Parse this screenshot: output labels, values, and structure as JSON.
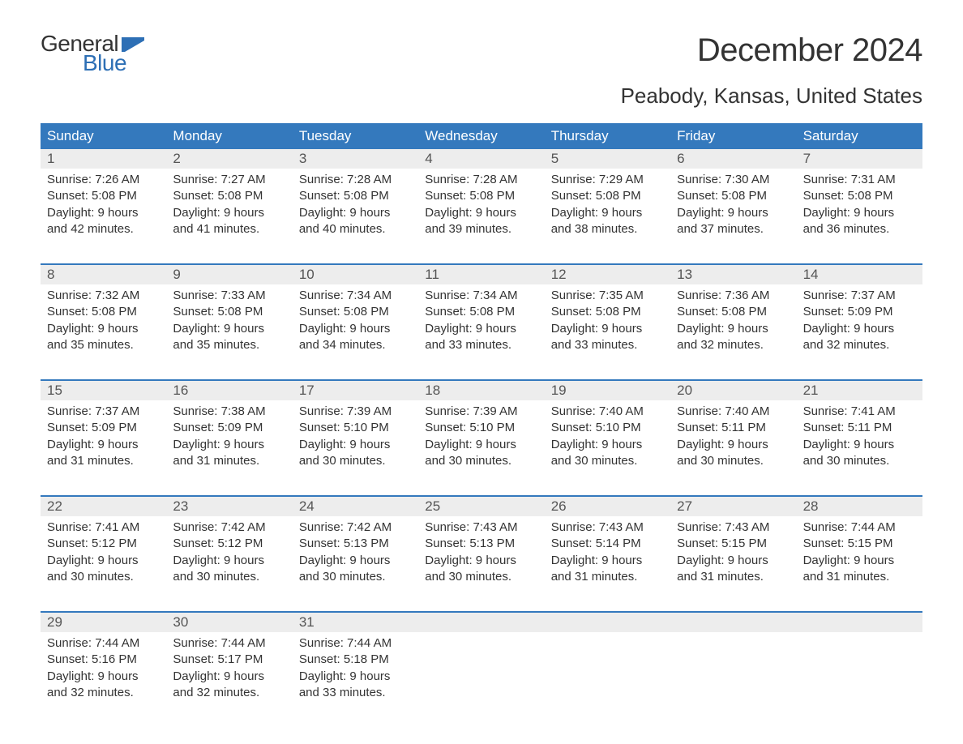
{
  "logo": {
    "text_general": "General",
    "text_blue": "Blue",
    "flag_color": "#2d6fb5"
  },
  "title": "December 2024",
  "location": "Peabody, Kansas, United States",
  "colors": {
    "header_bg": "#3479bd",
    "header_text": "#ffffff",
    "date_row_bg": "#ededed",
    "week_border": "#3479bd",
    "body_text": "#333333",
    "logo_blue": "#2d6fb5"
  },
  "day_names": [
    "Sunday",
    "Monday",
    "Tuesday",
    "Wednesday",
    "Thursday",
    "Friday",
    "Saturday"
  ],
  "weeks": [
    {
      "dates": [
        "1",
        "2",
        "3",
        "4",
        "5",
        "6",
        "7"
      ],
      "cells": [
        {
          "sunrise": "Sunrise: 7:26 AM",
          "sunset": "Sunset: 5:08 PM",
          "daylight1": "Daylight: 9 hours",
          "daylight2": "and 42 minutes."
        },
        {
          "sunrise": "Sunrise: 7:27 AM",
          "sunset": "Sunset: 5:08 PM",
          "daylight1": "Daylight: 9 hours",
          "daylight2": "and 41 minutes."
        },
        {
          "sunrise": "Sunrise: 7:28 AM",
          "sunset": "Sunset: 5:08 PM",
          "daylight1": "Daylight: 9 hours",
          "daylight2": "and 40 minutes."
        },
        {
          "sunrise": "Sunrise: 7:28 AM",
          "sunset": "Sunset: 5:08 PM",
          "daylight1": "Daylight: 9 hours",
          "daylight2": "and 39 minutes."
        },
        {
          "sunrise": "Sunrise: 7:29 AM",
          "sunset": "Sunset: 5:08 PM",
          "daylight1": "Daylight: 9 hours",
          "daylight2": "and 38 minutes."
        },
        {
          "sunrise": "Sunrise: 7:30 AM",
          "sunset": "Sunset: 5:08 PM",
          "daylight1": "Daylight: 9 hours",
          "daylight2": "and 37 minutes."
        },
        {
          "sunrise": "Sunrise: 7:31 AM",
          "sunset": "Sunset: 5:08 PM",
          "daylight1": "Daylight: 9 hours",
          "daylight2": "and 36 minutes."
        }
      ]
    },
    {
      "dates": [
        "8",
        "9",
        "10",
        "11",
        "12",
        "13",
        "14"
      ],
      "cells": [
        {
          "sunrise": "Sunrise: 7:32 AM",
          "sunset": "Sunset: 5:08 PM",
          "daylight1": "Daylight: 9 hours",
          "daylight2": "and 35 minutes."
        },
        {
          "sunrise": "Sunrise: 7:33 AM",
          "sunset": "Sunset: 5:08 PM",
          "daylight1": "Daylight: 9 hours",
          "daylight2": "and 35 minutes."
        },
        {
          "sunrise": "Sunrise: 7:34 AM",
          "sunset": "Sunset: 5:08 PM",
          "daylight1": "Daylight: 9 hours",
          "daylight2": "and 34 minutes."
        },
        {
          "sunrise": "Sunrise: 7:34 AM",
          "sunset": "Sunset: 5:08 PM",
          "daylight1": "Daylight: 9 hours",
          "daylight2": "and 33 minutes."
        },
        {
          "sunrise": "Sunrise: 7:35 AM",
          "sunset": "Sunset: 5:08 PM",
          "daylight1": "Daylight: 9 hours",
          "daylight2": "and 33 minutes."
        },
        {
          "sunrise": "Sunrise: 7:36 AM",
          "sunset": "Sunset: 5:08 PM",
          "daylight1": "Daylight: 9 hours",
          "daylight2": "and 32 minutes."
        },
        {
          "sunrise": "Sunrise: 7:37 AM",
          "sunset": "Sunset: 5:09 PM",
          "daylight1": "Daylight: 9 hours",
          "daylight2": "and 32 minutes."
        }
      ]
    },
    {
      "dates": [
        "15",
        "16",
        "17",
        "18",
        "19",
        "20",
        "21"
      ],
      "cells": [
        {
          "sunrise": "Sunrise: 7:37 AM",
          "sunset": "Sunset: 5:09 PM",
          "daylight1": "Daylight: 9 hours",
          "daylight2": "and 31 minutes."
        },
        {
          "sunrise": "Sunrise: 7:38 AM",
          "sunset": "Sunset: 5:09 PM",
          "daylight1": "Daylight: 9 hours",
          "daylight2": "and 31 minutes."
        },
        {
          "sunrise": "Sunrise: 7:39 AM",
          "sunset": "Sunset: 5:10 PM",
          "daylight1": "Daylight: 9 hours",
          "daylight2": "and 30 minutes."
        },
        {
          "sunrise": "Sunrise: 7:39 AM",
          "sunset": "Sunset: 5:10 PM",
          "daylight1": "Daylight: 9 hours",
          "daylight2": "and 30 minutes."
        },
        {
          "sunrise": "Sunrise: 7:40 AM",
          "sunset": "Sunset: 5:10 PM",
          "daylight1": "Daylight: 9 hours",
          "daylight2": "and 30 minutes."
        },
        {
          "sunrise": "Sunrise: 7:40 AM",
          "sunset": "Sunset: 5:11 PM",
          "daylight1": "Daylight: 9 hours",
          "daylight2": "and 30 minutes."
        },
        {
          "sunrise": "Sunrise: 7:41 AM",
          "sunset": "Sunset: 5:11 PM",
          "daylight1": "Daylight: 9 hours",
          "daylight2": "and 30 minutes."
        }
      ]
    },
    {
      "dates": [
        "22",
        "23",
        "24",
        "25",
        "26",
        "27",
        "28"
      ],
      "cells": [
        {
          "sunrise": "Sunrise: 7:41 AM",
          "sunset": "Sunset: 5:12 PM",
          "daylight1": "Daylight: 9 hours",
          "daylight2": "and 30 minutes."
        },
        {
          "sunrise": "Sunrise: 7:42 AM",
          "sunset": "Sunset: 5:12 PM",
          "daylight1": "Daylight: 9 hours",
          "daylight2": "and 30 minutes."
        },
        {
          "sunrise": "Sunrise: 7:42 AM",
          "sunset": "Sunset: 5:13 PM",
          "daylight1": "Daylight: 9 hours",
          "daylight2": "and 30 minutes."
        },
        {
          "sunrise": "Sunrise: 7:43 AM",
          "sunset": "Sunset: 5:13 PM",
          "daylight1": "Daylight: 9 hours",
          "daylight2": "and 30 minutes."
        },
        {
          "sunrise": "Sunrise: 7:43 AM",
          "sunset": "Sunset: 5:14 PM",
          "daylight1": "Daylight: 9 hours",
          "daylight2": "and 31 minutes."
        },
        {
          "sunrise": "Sunrise: 7:43 AM",
          "sunset": "Sunset: 5:15 PM",
          "daylight1": "Daylight: 9 hours",
          "daylight2": "and 31 minutes."
        },
        {
          "sunrise": "Sunrise: 7:44 AM",
          "sunset": "Sunset: 5:15 PM",
          "daylight1": "Daylight: 9 hours",
          "daylight2": "and 31 minutes."
        }
      ]
    },
    {
      "dates": [
        "29",
        "30",
        "31",
        "",
        "",
        "",
        ""
      ],
      "cells": [
        {
          "sunrise": "Sunrise: 7:44 AM",
          "sunset": "Sunset: 5:16 PM",
          "daylight1": "Daylight: 9 hours",
          "daylight2": "and 32 minutes."
        },
        {
          "sunrise": "Sunrise: 7:44 AM",
          "sunset": "Sunset: 5:17 PM",
          "daylight1": "Daylight: 9 hours",
          "daylight2": "and 32 minutes."
        },
        {
          "sunrise": "Sunrise: 7:44 AM",
          "sunset": "Sunset: 5:18 PM",
          "daylight1": "Daylight: 9 hours",
          "daylight2": "and 33 minutes."
        },
        {
          "sunrise": "",
          "sunset": "",
          "daylight1": "",
          "daylight2": ""
        },
        {
          "sunrise": "",
          "sunset": "",
          "daylight1": "",
          "daylight2": ""
        },
        {
          "sunrise": "",
          "sunset": "",
          "daylight1": "",
          "daylight2": ""
        },
        {
          "sunrise": "",
          "sunset": "",
          "daylight1": "",
          "daylight2": ""
        }
      ]
    }
  ]
}
